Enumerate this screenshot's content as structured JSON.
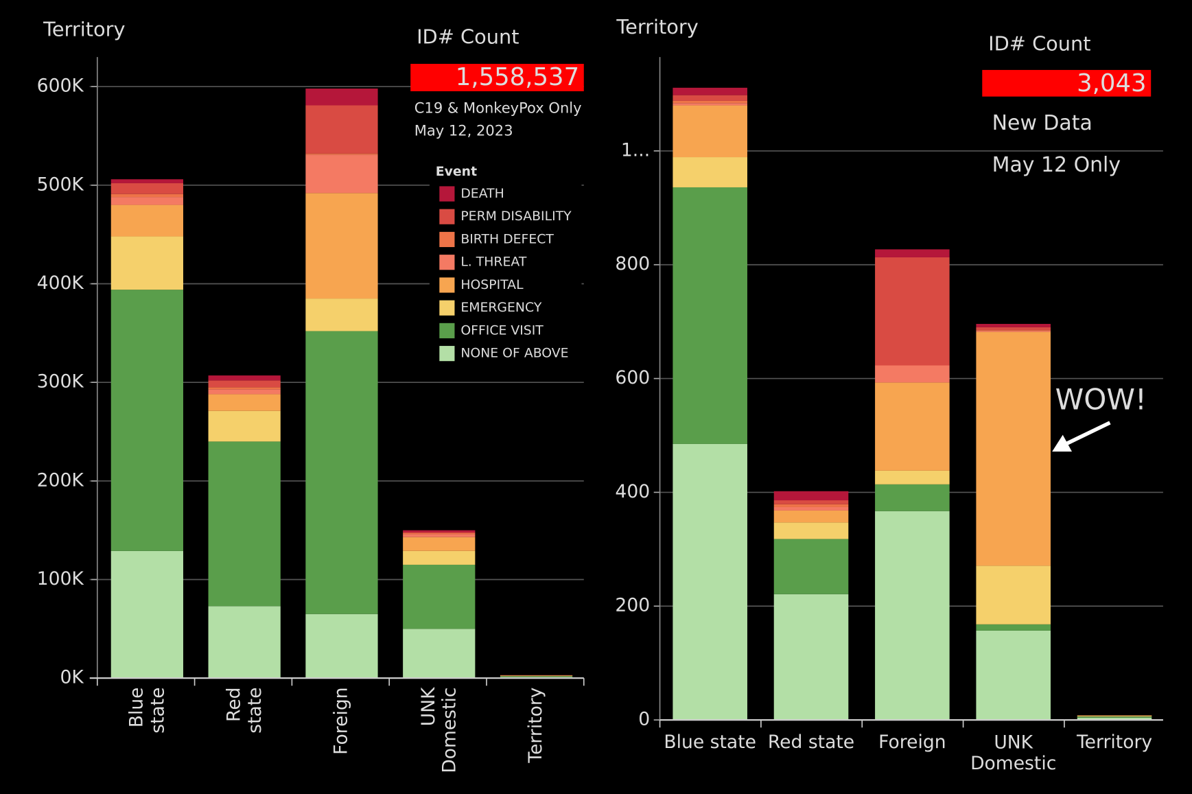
{
  "chart_data": [
    {
      "type": "bar",
      "stacked": true,
      "title": "Territory",
      "kpi_label": "ID# Count",
      "kpi_value": "1,558,537",
      "notes": [
        "C19 & MonkeyPox Only",
        "May 12, 2023"
      ],
      "legend": true,
      "legend_title": "Event",
      "categories": [
        "Blue state",
        "Red state",
        "Foreign",
        "UNK Domestic",
        "Territory"
      ],
      "series": [
        {
          "name": "NONE OF ABOVE",
          "color": "#b3dfa6",
          "values": [
            129000,
            73000,
            65000,
            50000,
            1000
          ]
        },
        {
          "name": "OFFICE VISIT",
          "color": "#5a9e4b",
          "values": [
            265000,
            167000,
            287000,
            65000,
            1000
          ]
        },
        {
          "name": "EMERGENCY",
          "color": "#f5d06b",
          "values": [
            54000,
            31000,
            33000,
            14000,
            300
          ]
        },
        {
          "name": "HOSPITAL",
          "color": "#f7a550",
          "values": [
            32000,
            17000,
            107000,
            14000,
            500
          ]
        },
        {
          "name": "L. THREAT",
          "color": "#f47a63",
          "values": [
            8000,
            5000,
            39000,
            3000,
            100
          ]
        },
        {
          "name": "BIRTH DEFECT",
          "color": "#ee7448",
          "values": [
            3000,
            2000,
            1000,
            1000,
            0
          ]
        },
        {
          "name": "PERM DISABILITY",
          "color": "#d94b43",
          "values": [
            11000,
            7000,
            49000,
            1000,
            100
          ]
        },
        {
          "name": "DEATH",
          "color": "#b5173a",
          "values": [
            4000,
            5000,
            17000,
            2000,
            100
          ]
        }
      ],
      "ylim": [
        0,
        630000
      ],
      "yticks": [
        {
          "value": 0,
          "label": "0K"
        },
        {
          "value": 100000,
          "label": "100K"
        },
        {
          "value": 200000,
          "label": "200K"
        },
        {
          "value": 300000,
          "label": "300K"
        },
        {
          "value": 400000,
          "label": "400K"
        },
        {
          "value": 500000,
          "label": "500K"
        },
        {
          "value": 600000,
          "label": "600K"
        }
      ],
      "grid": true
    },
    {
      "type": "bar",
      "stacked": true,
      "title": "Territory",
      "kpi_label": "ID# Count",
      "kpi_value": "3,043",
      "notes": [
        "New Data",
        "May 12 Only"
      ],
      "annotation": "WOW!",
      "legend": false,
      "categories": [
        "Blue state",
        "Red state",
        "Foreign",
        "UNK Domestic",
        "Territory"
      ],
      "series": [
        {
          "color": "#b3dfa6",
          "values": [
            485,
            221,
            367,
            157,
            4
          ]
        },
        {
          "color": "#5a9e4b",
          "values": [
            451,
            97,
            47,
            11,
            2
          ]
        },
        {
          "color": "#f5d06b",
          "values": [
            53,
            29,
            24,
            103,
            1
          ]
        },
        {
          "color": "#f7a550",
          "values": [
            91,
            21,
            155,
            411,
            1
          ]
        },
        {
          "color": "#f47a63",
          "values": [
            4,
            6,
            30,
            2,
            0
          ]
        },
        {
          "color": "#ee7448",
          "values": [
            4,
            5,
            0,
            1,
            0
          ]
        },
        {
          "color": "#d94b43",
          "values": [
            10,
            7,
            190,
            5,
            0
          ]
        },
        {
          "color": "#b5173a",
          "values": [
            13,
            16,
            14,
            6,
            0
          ]
        }
      ],
      "ylim": [
        0,
        1165
      ],
      "yticks": [
        0,
        200,
        400,
        600,
        800,
        {
          "value": 1000,
          "label": "1..."
        }
      ],
      "grid": true
    }
  ]
}
